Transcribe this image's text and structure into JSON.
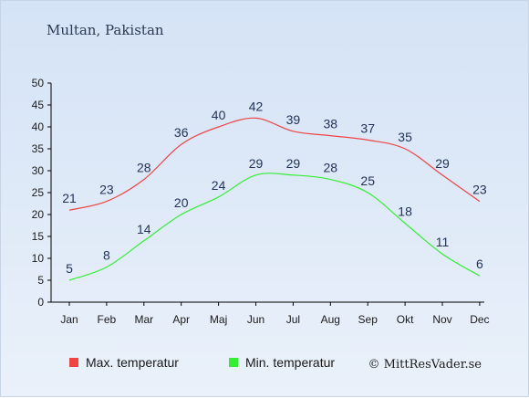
{
  "chart_data": {
    "type": "line",
    "title": "Multan, Pakistan",
    "categories": [
      "Jan",
      "Feb",
      "Mar",
      "Apr",
      "Maj",
      "Jun",
      "Jul",
      "Aug",
      "Sep",
      "Okt",
      "Nov",
      "Dec"
    ],
    "series": [
      {
        "name": "Max. temperatur",
        "color": "#ee4444",
        "values": [
          21,
          23,
          28,
          36,
          40,
          42,
          39,
          38,
          37,
          35,
          29,
          23
        ]
      },
      {
        "name": "Min. temperatur",
        "color": "#33ee33",
        "values": [
          5,
          8,
          14,
          20,
          24,
          29,
          29,
          28,
          25,
          18,
          11,
          6
        ]
      }
    ],
    "ylim": [
      0,
      50
    ],
    "yticks": [
      0,
      5,
      10,
      15,
      20,
      25,
      30,
      35,
      40,
      45,
      50
    ],
    "grid": false,
    "legend": "bottom",
    "credit": "© MittResVader.se"
  }
}
